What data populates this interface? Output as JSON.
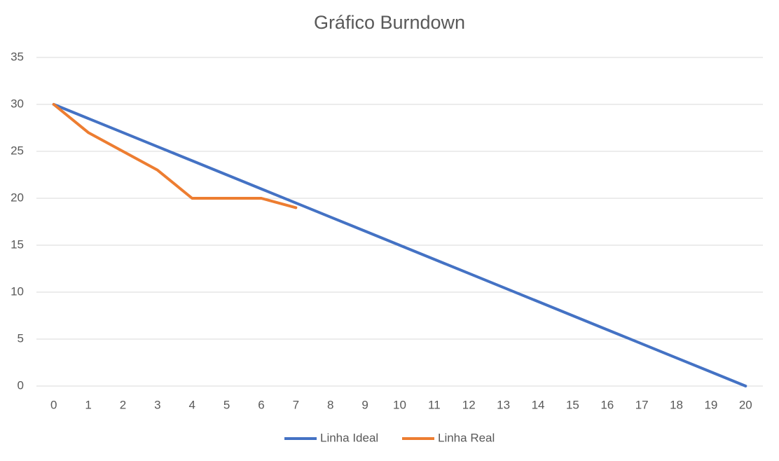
{
  "chart_data": {
    "type": "line",
    "title": "Gráfico Burndown",
    "categories": [
      0,
      1,
      2,
      3,
      4,
      5,
      6,
      7,
      8,
      9,
      10,
      11,
      12,
      13,
      14,
      15,
      16,
      17,
      18,
      19,
      20
    ],
    "series": [
      {
        "name": "Linha Ideal",
        "color": "#4472c4",
        "values": [
          30,
          28.5,
          27,
          25.5,
          24,
          22.5,
          21,
          19.5,
          18,
          16.5,
          15,
          13.5,
          12,
          10.5,
          9,
          7.5,
          6,
          4.5,
          3,
          1.5,
          0
        ]
      },
      {
        "name": "Linha Real",
        "color": "#ed7d31",
        "values": [
          30,
          27,
          25,
          23,
          20,
          20,
          20,
          19,
          null,
          null,
          null,
          null,
          null,
          null,
          null,
          null,
          null,
          null,
          null,
          null,
          null
        ]
      }
    ],
    "ylim": [
      0,
      35
    ],
    "yticks": [
      0,
      5,
      10,
      15,
      20,
      25,
      30,
      35
    ],
    "grid": true,
    "legend": "bottom"
  }
}
